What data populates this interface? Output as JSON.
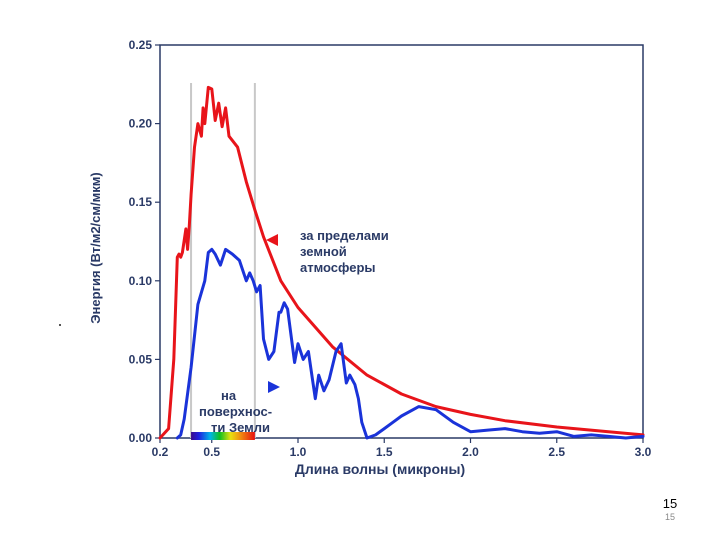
{
  "chart_data": {
    "type": "line",
    "title": "",
    "xlabel": "Длина волны (микроны)",
    "ylabel": "Энергия (Вт/м2/см/мкм)",
    "xlim": [
      0.2,
      3.0
    ],
    "ylim": [
      0,
      0.25
    ],
    "x_ticks": [
      "0.2",
      "0.5",
      "1.0",
      "1.5",
      "2.0",
      "2.5",
      "3.0"
    ],
    "x_tick_values": [
      0.2,
      0.5,
      1.0,
      1.5,
      2.0,
      2.5,
      3.0
    ],
    "y_ticks": [
      "0.00",
      "0.05",
      "0.10",
      "0.15",
      "0.20",
      "0.25"
    ],
    "y_tick_values": [
      0,
      0.05,
      0.1,
      0.15,
      0.2,
      0.25
    ],
    "visible_band": [
      0.38,
      0.75
    ],
    "series": [
      {
        "name": "за пределами земной атмосферы",
        "color": "#e8141a",
        "x": [
          0.2,
          0.25,
          0.28,
          0.3,
          0.31,
          0.32,
          0.33,
          0.35,
          0.36,
          0.37,
          0.38,
          0.4,
          0.42,
          0.44,
          0.45,
          0.46,
          0.48,
          0.5,
          0.52,
          0.54,
          0.56,
          0.58,
          0.6,
          0.65,
          0.7,
          0.75,
          0.8,
          0.9,
          1.0,
          1.2,
          1.4,
          1.6,
          1.8,
          2.0,
          2.2,
          2.5,
          2.8,
          3.0
        ],
        "values": [
          0.0,
          0.006,
          0.05,
          0.115,
          0.117,
          0.115,
          0.118,
          0.133,
          0.12,
          0.135,
          0.155,
          0.185,
          0.2,
          0.192,
          0.21,
          0.2,
          0.223,
          0.222,
          0.202,
          0.213,
          0.198,
          0.21,
          0.192,
          0.185,
          0.163,
          0.145,
          0.128,
          0.1,
          0.083,
          0.058,
          0.04,
          0.028,
          0.02,
          0.015,
          0.011,
          0.007,
          0.004,
          0.002
        ]
      },
      {
        "name": "на поверхности Земли",
        "color": "#1a33d9",
        "x": [
          0.3,
          0.32,
          0.34,
          0.38,
          0.42,
          0.46,
          0.48,
          0.5,
          0.52,
          0.55,
          0.58,
          0.62,
          0.66,
          0.7,
          0.72,
          0.74,
          0.76,
          0.78,
          0.8,
          0.83,
          0.86,
          0.89,
          0.9,
          0.92,
          0.94,
          0.98,
          1.0,
          1.03,
          1.06,
          1.1,
          1.12,
          1.15,
          1.18,
          1.22,
          1.25,
          1.28,
          1.3,
          1.33,
          1.35,
          1.37,
          1.4,
          1.45,
          1.5,
          1.55,
          1.6,
          1.7,
          1.8,
          1.9,
          2.0,
          2.1,
          2.2,
          2.3,
          2.4,
          2.5,
          2.6,
          2.7,
          2.8,
          2.9,
          3.0
        ],
        "values": [
          0.0,
          0.002,
          0.012,
          0.045,
          0.085,
          0.1,
          0.118,
          0.12,
          0.117,
          0.11,
          0.12,
          0.117,
          0.113,
          0.1,
          0.105,
          0.1,
          0.093,
          0.097,
          0.063,
          0.05,
          0.055,
          0.08,
          0.08,
          0.086,
          0.082,
          0.048,
          0.06,
          0.05,
          0.055,
          0.025,
          0.04,
          0.03,
          0.037,
          0.055,
          0.06,
          0.035,
          0.04,
          0.034,
          0.025,
          0.01,
          0.0,
          0.002,
          0.006,
          0.01,
          0.014,
          0.02,
          0.018,
          0.01,
          0.004,
          0.005,
          0.006,
          0.004,
          0.003,
          0.004,
          0.001,
          0.002,
          0.001,
          0.0,
          0.001
        ]
      }
    ],
    "annotations": {
      "outside": [
        "за пределами",
        "земной",
        "атмосферы"
      ],
      "surface": [
        "на",
        "поверхнос-",
        "ти Земли"
      ]
    }
  },
  "page_number": "15",
  "page_number_small": "15"
}
